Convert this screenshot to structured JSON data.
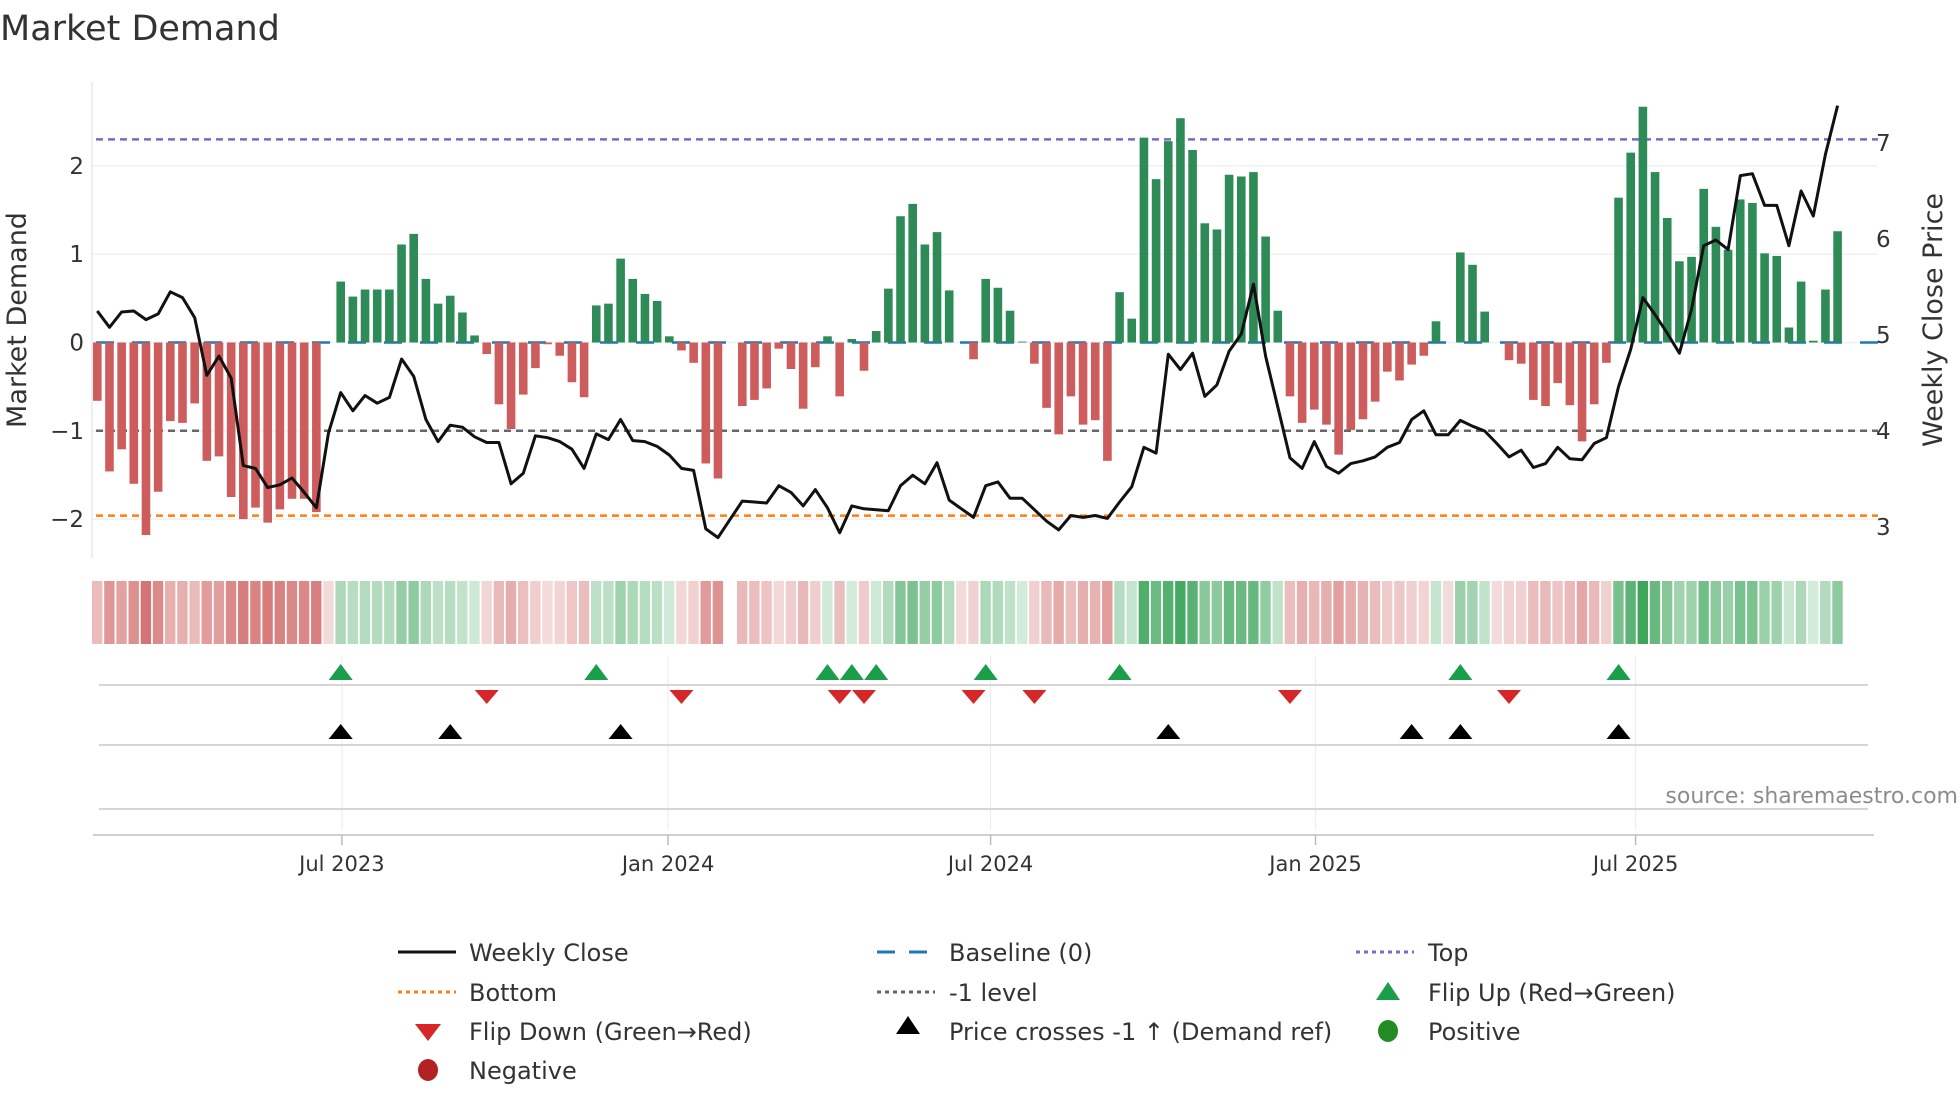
{
  "title": "Market Demand",
  "source": "source: sharemaestro.com",
  "colors": {
    "positive_bar": "#2e8b57",
    "negative_bar": "#cd5c5c",
    "price_line": "#111111",
    "baseline": "#1f77b4",
    "top": "#7b68c8",
    "bottom": "#ff7f0e",
    "minus_one": "#666666",
    "flip_up": "#1a9e4a",
    "flip_down": "#d62728",
    "price_cross": "#000000",
    "positive_dot": "#228b22",
    "negative_dot": "#b22222"
  },
  "chart_data": {
    "type": "bar",
    "title": "Market Demand",
    "ylabel": "Market Demand",
    "y2label": "Weekly Close Price",
    "ylim": [
      -2.45,
      2.93
    ],
    "y2lim": [
      2.7,
      7.6
    ],
    "yticks": [
      {
        "v": -2,
        "label": "−2"
      },
      {
        "v": -1,
        "label": "−1"
      },
      {
        "v": 0,
        "label": "0"
      },
      {
        "v": 1,
        "label": "1"
      },
      {
        "v": 2,
        "label": "2"
      }
    ],
    "y2ticks": [
      {
        "v": 3,
        "label": "3"
      },
      {
        "v": 4,
        "label": "4"
      },
      {
        "v": 5,
        "label": "5"
      },
      {
        "v": 6,
        "label": "6"
      },
      {
        "v": 7,
        "label": "7"
      }
    ],
    "xticks": [
      {
        "week": 20.1,
        "label": "Jul 2023"
      },
      {
        "week": 46.9,
        "label": "Jan 2024"
      },
      {
        "week": 73.4,
        "label": "Jul 2024"
      },
      {
        "week": 100.1,
        "label": "Jan 2025"
      },
      {
        "week": 126.4,
        "label": "Jul 2025"
      }
    ],
    "levels": {
      "top": 2.3,
      "bottom": -1.96,
      "minus_one": -1,
      "baseline": 0
    },
    "demand": [
      -0.66,
      -1.46,
      -1.21,
      -1.6,
      -2.18,
      -1.69,
      -0.89,
      -0.91,
      -0.69,
      -1.34,
      -1.29,
      -1.75,
      -2.0,
      -1.87,
      -2.04,
      -1.89,
      -1.77,
      -1.77,
      -1.92,
      0.0,
      0.69,
      0.52,
      0.6,
      0.6,
      0.6,
      1.11,
      1.23,
      0.72,
      0.44,
      0.53,
      0.34,
      0.08,
      -0.13,
      -0.7,
      -0.98,
      -0.59,
      -0.29,
      -0.02,
      -0.15,
      -0.45,
      -0.62,
      0.42,
      0.44,
      0.95,
      0.72,
      0.55,
      0.47,
      0.07,
      -0.09,
      -0.23,
      -1.37,
      -1.54,
      0.0,
      -0.72,
      -0.65,
      -0.52,
      -0.07,
      -0.3,
      -0.75,
      -0.28,
      0.07,
      -0.61,
      0.04,
      -0.32,
      0.13,
      0.61,
      1.43,
      1.57,
      1.11,
      1.25,
      0.59,
      0.0,
      -0.19,
      0.72,
      0.62,
      0.36,
      0.01,
      -0.24,
      -0.74,
      -1.04,
      -0.61,
      -0.93,
      -0.88,
      -1.34,
      0.57,
      0.27,
      2.32,
      1.85,
      2.28,
      2.54,
      2.18,
      1.35,
      1.28,
      1.9,
      1.88,
      1.93,
      1.2,
      0.36,
      -0.61,
      -0.91,
      -0.76,
      -0.93,
      -1.27,
      -0.99,
      -0.87,
      -0.67,
      -0.33,
      -0.43,
      -0.25,
      -0.15,
      0.24,
      0.0,
      1.02,
      0.88,
      0.35,
      0.0,
      -0.2,
      -0.24,
      -0.65,
      -0.72,
      -0.46,
      -0.71,
      -1.12,
      -0.7,
      -0.23,
      1.64,
      2.15,
      2.67,
      1.93,
      1.41,
      0.92,
      0.97,
      1.74,
      1.31,
      1.05,
      1.62,
      1.58,
      1.01,
      0.98,
      0.17,
      0.69,
      0.02,
      0.6,
      1.26
    ],
    "price": [
      5.25,
      5.08,
      5.24,
      5.25,
      5.16,
      5.22,
      5.45,
      5.39,
      5.18,
      4.58,
      4.78,
      4.55,
      3.64,
      3.61,
      3.41,
      3.44,
      3.51,
      3.36,
      3.2,
      3.98,
      4.4,
      4.21,
      4.37,
      4.29,
      4.35,
      4.75,
      4.57,
      4.12,
      3.89,
      4.06,
      4.04,
      3.94,
      3.88,
      3.88,
      3.45,
      3.56,
      3.95,
      3.93,
      3.89,
      3.81,
      3.61,
      3.97,
      3.91,
      4.12,
      3.9,
      3.89,
      3.84,
      3.75,
      3.61,
      3.59,
      2.98,
      2.89,
      3.08,
      3.27,
      3.26,
      3.25,
      3.43,
      3.36,
      3.22,
      3.39,
      3.2,
      2.94,
      3.22,
      3.19,
      3.18,
      3.17,
      3.43,
      3.54,
      3.45,
      3.67,
      3.28,
      3.19,
      3.1,
      3.43,
      3.47,
      3.3,
      3.3,
      3.18,
      3.06,
      2.97,
      3.12,
      3.1,
      3.12,
      3.09,
      3.26,
      3.42,
      3.83,
      3.77,
      4.8,
      4.64,
      4.81,
      4.36,
      4.48,
      4.83,
      5.01,
      5.53,
      4.78,
      4.25,
      3.72,
      3.61,
      3.89,
      3.63,
      3.56,
      3.66,
      3.69,
      3.73,
      3.83,
      3.88,
      4.12,
      4.21,
      3.96,
      3.96,
      4.11,
      4.05,
      4.0,
      3.87,
      3.73,
      3.8,
      3.62,
      3.66,
      3.83,
      3.71,
      3.7,
      3.87,
      3.93,
      4.46,
      4.85,
      5.39,
      5.21,
      5.02,
      4.81,
      5.27,
      5.93,
      5.99,
      5.89,
      6.66,
      6.68,
      6.35,
      6.35,
      5.93,
      6.5,
      6.24,
      6.88,
      7.39
    ],
    "flip_up_weeks": [
      20,
      41,
      60,
      62,
      64,
      73,
      84,
      112,
      125
    ],
    "flip_down_weeks": [
      32,
      48,
      61,
      63,
      72,
      77,
      98,
      116
    ],
    "price_cross_weeks": [
      20,
      29,
      43,
      88,
      108,
      112,
      125
    ]
  },
  "legend": [
    {
      "key": "weekly_close",
      "label": "Weekly Close"
    },
    {
      "key": "baseline",
      "label": "Baseline (0)"
    },
    {
      "key": "top",
      "label": "Top"
    },
    {
      "key": "bottom",
      "label": "Bottom"
    },
    {
      "key": "minus_one",
      "label": "-1 level"
    },
    {
      "key": "flip_up",
      "label": "Flip Up (Red→Green)"
    },
    {
      "key": "flip_down",
      "label": "Flip Down (Green→Red)"
    },
    {
      "key": "price_cross",
      "label": "Price crosses -1 ↑ (Demand ref)"
    },
    {
      "key": "positive",
      "label": "Positive"
    },
    {
      "key": "negative",
      "label": "Negative"
    }
  ]
}
